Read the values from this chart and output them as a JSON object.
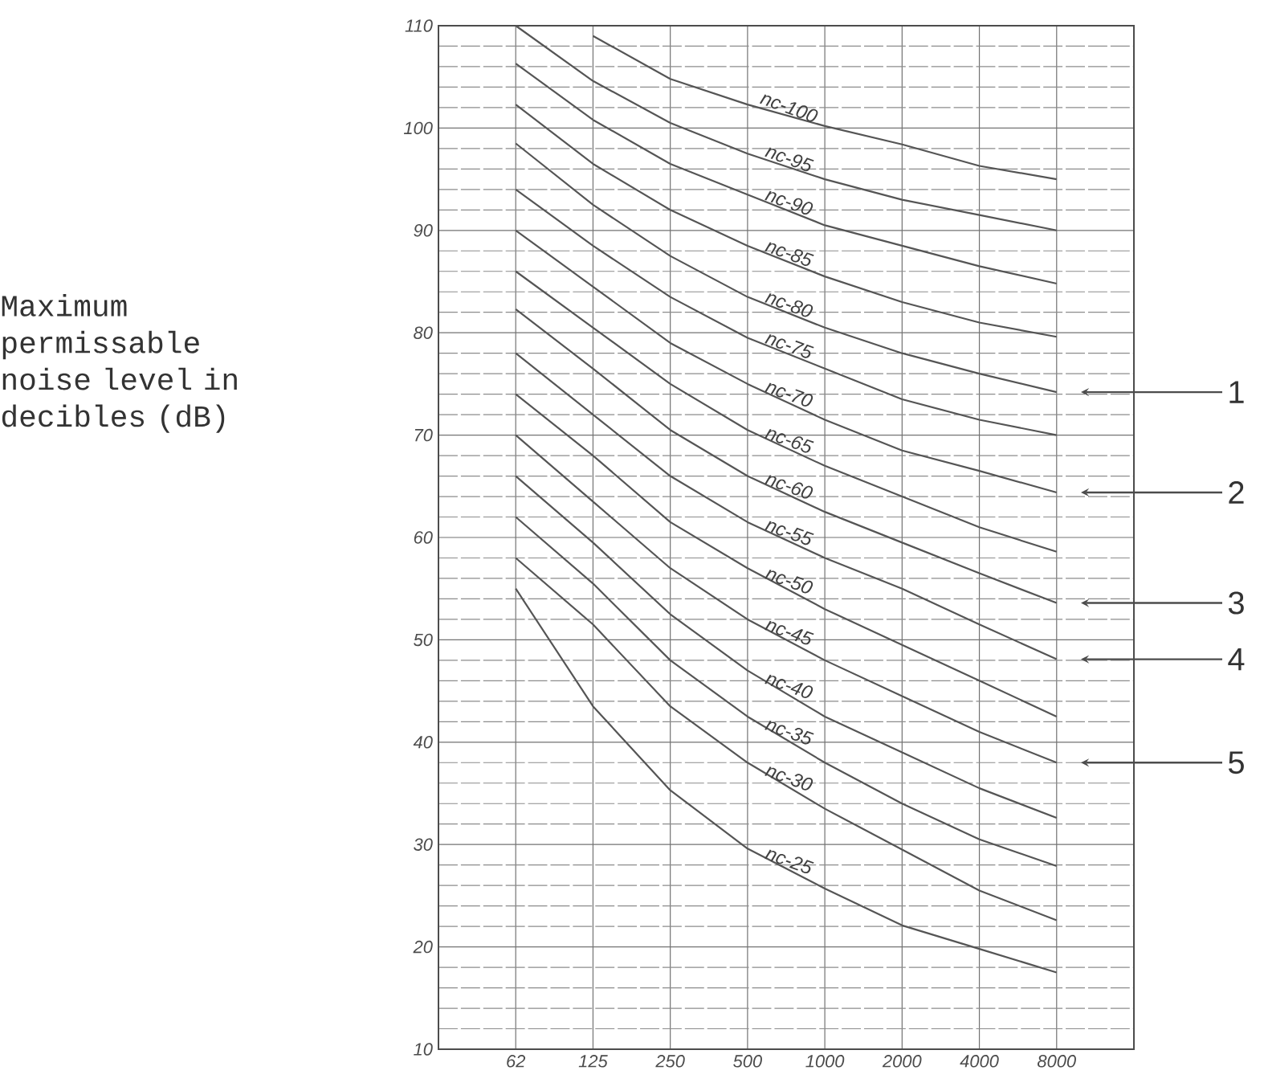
{
  "chart_data": {
    "type": "line",
    "categories": [
      "62",
      "125",
      "250",
      "500",
      "1000",
      "2000",
      "4000",
      "8000"
    ],
    "ylim": [
      10,
      110
    ],
    "yticks": [
      10,
      20,
      30,
      40,
      50,
      60,
      70,
      80,
      90,
      100,
      110
    ],
    "grid": true,
    "marker": "none",
    "line_style": "solid",
    "series": [
      {
        "name": "nc-100",
        "color": "#555555",
        "values": [
          null,
          109,
          104.8,
          102.3,
          100.2,
          98.4,
          96.3,
          95
        ]
      },
      {
        "name": "nc-95",
        "color": "#555555",
        "values": [
          110,
          104.6,
          100.5,
          97.5,
          95,
          93,
          91.5,
          90
        ]
      },
      {
        "name": "nc-90",
        "color": "#555555",
        "values": [
          106.3,
          100.8,
          96.5,
          93.5,
          90.5,
          88.5,
          86.5,
          84.8
        ]
      },
      {
        "name": "nc-85",
        "color": "#555555",
        "values": [
          102.3,
          96.5,
          92,
          88.5,
          85.5,
          83,
          81,
          79.6
        ]
      },
      {
        "name": "nc-80",
        "color": "#555555",
        "values": [
          98.5,
          92.5,
          87.5,
          83.5,
          80.5,
          78,
          76,
          74.2
        ]
      },
      {
        "name": "nc-75",
        "color": "#555555",
        "values": [
          94,
          88.5,
          83.5,
          79.5,
          76.5,
          73.5,
          71.5,
          70
        ]
      },
      {
        "name": "nc-70",
        "color": "#555555",
        "values": [
          90,
          84.5,
          79,
          75,
          71.5,
          68.5,
          66.5,
          64.4
        ]
      },
      {
        "name": "nc-65",
        "color": "#555555",
        "values": [
          86,
          80.5,
          75,
          70.5,
          67,
          64,
          61,
          58.6
        ]
      },
      {
        "name": "nc-60",
        "color": "#555555",
        "values": [
          82.3,
          76.5,
          70.5,
          66,
          62.5,
          59.5,
          56.5,
          53.6
        ]
      },
      {
        "name": "nc-55",
        "color": "#555555",
        "values": [
          78,
          72,
          66,
          61.5,
          58,
          55,
          51.5,
          48.1
        ]
      },
      {
        "name": "nc-50",
        "color": "#555555",
        "values": [
          74,
          68,
          61.5,
          57,
          53,
          49.5,
          46,
          42.5
        ]
      },
      {
        "name": "nc-45",
        "color": "#555555",
        "values": [
          70,
          63.5,
          57,
          52,
          48,
          44.5,
          41,
          38
        ]
      },
      {
        "name": "nc-40",
        "color": "#555555",
        "values": [
          66,
          59.5,
          52.5,
          47,
          42.5,
          39,
          35.5,
          32.6
        ]
      },
      {
        "name": "nc-35",
        "color": "#555555",
        "values": [
          62,
          55.5,
          48,
          42.5,
          38,
          34,
          30.5,
          27.9
        ]
      },
      {
        "name": "nc-30",
        "color": "#555555",
        "values": [
          58,
          51.5,
          43.5,
          38,
          33.5,
          29.5,
          25.5,
          22.6
        ]
      },
      {
        "name": "nc-25",
        "color": "#555555",
        "values": [
          55,
          43.5,
          35.3,
          29.6,
          25.7,
          22.1,
          19.8,
          17.5
        ]
      }
    ],
    "annotations": [
      "Maximum permissable noise level in decibles (dB)",
      "1",
      "2",
      "3",
      "4",
      "5"
    ]
  }
}
